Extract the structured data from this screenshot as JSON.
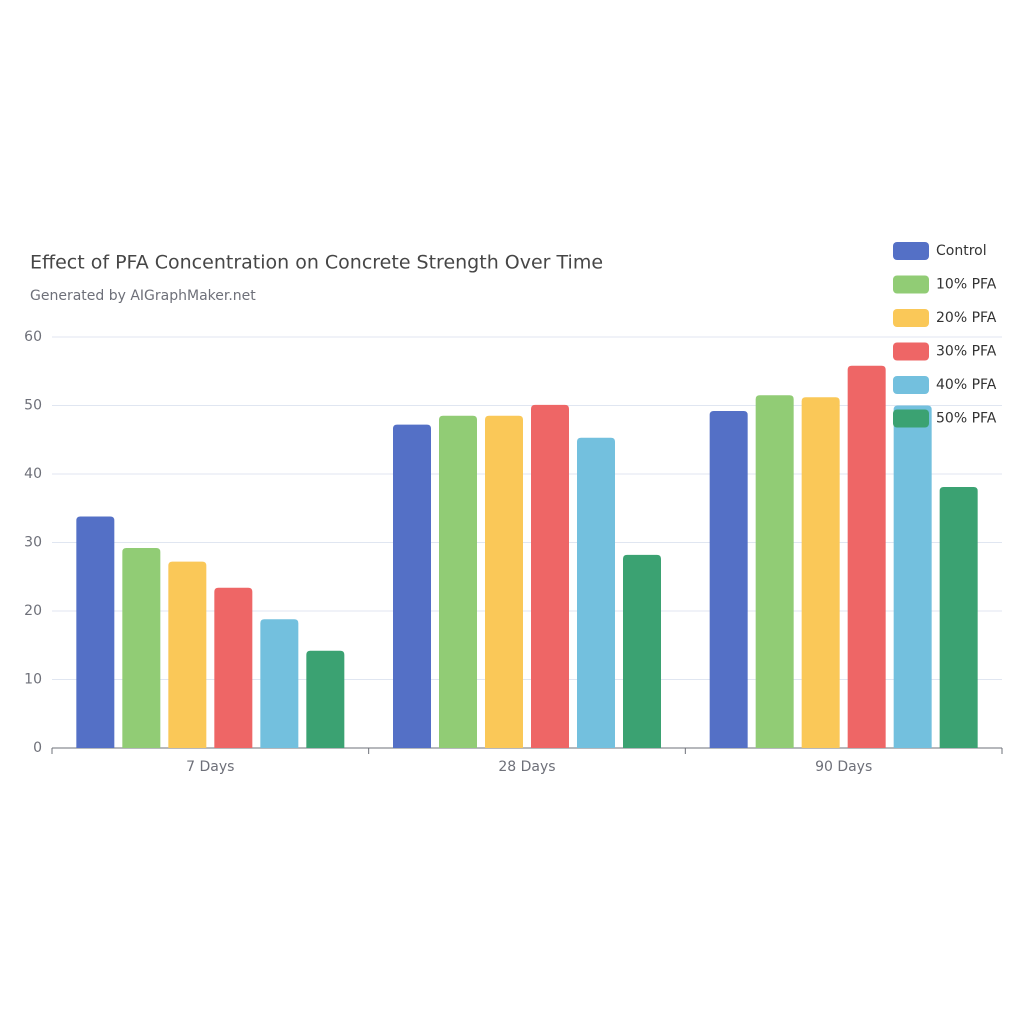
{
  "chart_data": {
    "type": "bar",
    "title": "Effect of PFA Concentration on Concrete Strength Over Time",
    "subtitle": "Generated by AIGraphMaker.net",
    "categories": [
      "7 Days",
      "28 Days",
      "90 Days"
    ],
    "series": [
      {
        "name": "Control",
        "color": "#5470c6",
        "values": [
          33.8,
          47.2,
          49.2
        ]
      },
      {
        "name": "10% PFA",
        "color": "#91cc75",
        "values": [
          29.2,
          48.5,
          51.5
        ]
      },
      {
        "name": "20% PFA",
        "color": "#fac858",
        "values": [
          27.2,
          48.5,
          51.2
        ]
      },
      {
        "name": "30% PFA",
        "color": "#ee6666",
        "values": [
          23.4,
          50.1,
          55.8
        ]
      },
      {
        "name": "40% PFA",
        "color": "#73c0de",
        "values": [
          18.8,
          45.3,
          50.0
        ]
      },
      {
        "name": "50% PFA",
        "color": "#3ba272",
        "values": [
          14.2,
          28.2,
          38.1
        ]
      }
    ],
    "ylim": [
      0,
      60
    ],
    "yticks": [
      0,
      10,
      20,
      30,
      40,
      50,
      60
    ],
    "grid": true,
    "legend": "top-right"
  }
}
